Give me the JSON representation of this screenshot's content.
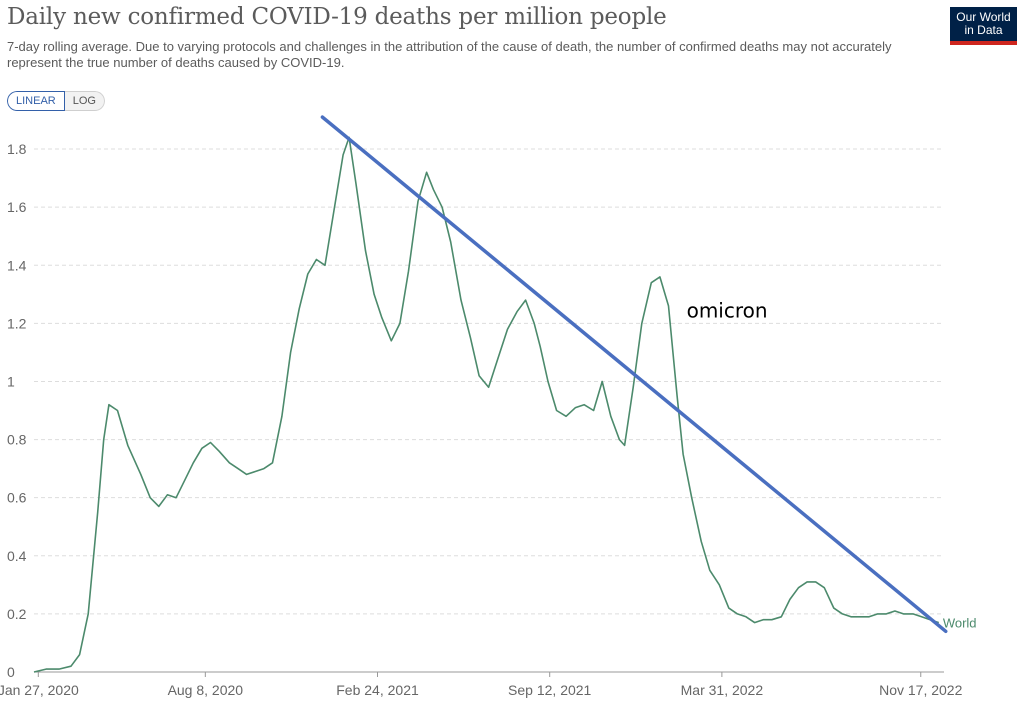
{
  "header": {
    "title": "Daily new confirmed COVID-19 deaths per million people",
    "subtitle": "7-day rolling average. Due to varying protocols and challenges in the attribution of the cause of death, the number of confirmed deaths may not accurately represent the true number of deaths caused by COVID-19.",
    "logo_line1": "Our World",
    "logo_line2": "in Data"
  },
  "scale_toggle": {
    "linear_label": "LINEAR",
    "log_label": "LOG",
    "selected": "LINEAR"
  },
  "colors": {
    "series": "#4c8a6c",
    "trendline": "#4a6fc0",
    "grid": "#dddddd",
    "logo_bg": "#002147",
    "logo_accent": "#ce261e",
    "toggle_accent": "#3360a9"
  },
  "chart_data": {
    "type": "line",
    "title": "Daily new confirmed COVID-19 deaths per million people",
    "xlabel": "",
    "ylabel": "",
    "ylim": [
      0,
      1.9
    ],
    "yticks": [
      0,
      0.2,
      0.4,
      0.6,
      0.8,
      1,
      1.2,
      1.4,
      1.6,
      1.8
    ],
    "ytick_labels": [
      "0",
      "0.2",
      "0.4",
      "0.6",
      "0.8",
      "1",
      "1.2",
      "1.4",
      "1.6",
      "1.8"
    ],
    "xticks": [
      "Jan 27, 2020",
      "Aug 8, 2020",
      "Feb 24, 2021",
      "Sep 12, 2021",
      "Mar 31, 2022",
      "Nov 17, 2022"
    ],
    "xlim": [
      "2020-01-22",
      "2022-12-14"
    ],
    "grid": "horizontal dashed",
    "series": [
      {
        "name": "World",
        "x": [
          "2020-01-22",
          "2020-02-05",
          "2020-02-20",
          "2020-03-05",
          "2020-03-15",
          "2020-03-25",
          "2020-04-05",
          "2020-04-12",
          "2020-04-18",
          "2020-04-28",
          "2020-05-10",
          "2020-05-25",
          "2020-06-05",
          "2020-06-15",
          "2020-06-25",
          "2020-07-05",
          "2020-07-15",
          "2020-07-25",
          "2020-08-04",
          "2020-08-14",
          "2020-08-24",
          "2020-09-05",
          "2020-09-15",
          "2020-09-25",
          "2020-10-05",
          "2020-10-15",
          "2020-10-25",
          "2020-11-05",
          "2020-11-15",
          "2020-11-25",
          "2020-12-05",
          "2020-12-15",
          "2020-12-25",
          "2021-01-05",
          "2021-01-15",
          "2021-01-22",
          "2021-01-30",
          "2021-02-10",
          "2021-02-20",
          "2021-03-01",
          "2021-03-12",
          "2021-03-22",
          "2021-04-01",
          "2021-04-12",
          "2021-04-22",
          "2021-04-30",
          "2021-05-10",
          "2021-05-20",
          "2021-06-01",
          "2021-06-12",
          "2021-06-22",
          "2021-07-03",
          "2021-07-14",
          "2021-07-25",
          "2021-08-05",
          "2021-08-15",
          "2021-08-25",
          "2021-09-01",
          "2021-09-10",
          "2021-09-20",
          "2021-10-01",
          "2021-10-12",
          "2021-10-22",
          "2021-11-02",
          "2021-11-12",
          "2021-11-22",
          "2021-12-02",
          "2021-12-08",
          "2021-12-18",
          "2021-12-28",
          "2022-01-08",
          "2022-01-18",
          "2022-01-28",
          "2022-02-07",
          "2022-02-14",
          "2022-02-24",
          "2022-03-07",
          "2022-03-17",
          "2022-03-28",
          "2022-04-08",
          "2022-04-18",
          "2022-04-28",
          "2022-05-08",
          "2022-05-18",
          "2022-05-28",
          "2022-06-08",
          "2022-06-18",
          "2022-06-28",
          "2022-07-08",
          "2022-07-18",
          "2022-07-28",
          "2022-08-08",
          "2022-08-18",
          "2022-08-28",
          "2022-09-08",
          "2022-09-18",
          "2022-09-28",
          "2022-10-08",
          "2022-10-18",
          "2022-10-28",
          "2022-11-08",
          "2022-11-18",
          "2022-11-28",
          "2022-12-08"
        ],
        "values": [
          0,
          0.01,
          0.01,
          0.02,
          0.06,
          0.2,
          0.55,
          0.8,
          0.92,
          0.9,
          0.78,
          0.68,
          0.6,
          0.57,
          0.61,
          0.6,
          0.66,
          0.72,
          0.77,
          0.79,
          0.76,
          0.72,
          0.7,
          0.68,
          0.69,
          0.7,
          0.72,
          0.88,
          1.1,
          1.25,
          1.37,
          1.42,
          1.4,
          1.6,
          1.78,
          1.84,
          1.68,
          1.45,
          1.3,
          1.22,
          1.14,
          1.2,
          1.38,
          1.62,
          1.72,
          1.66,
          1.6,
          1.48,
          1.28,
          1.15,
          1.02,
          0.98,
          1.08,
          1.18,
          1.24,
          1.28,
          1.2,
          1.12,
          1.0,
          0.9,
          0.88,
          0.91,
          0.92,
          0.9,
          1.0,
          0.88,
          0.8,
          0.78,
          0.98,
          1.2,
          1.34,
          1.36,
          1.26,
          0.95,
          0.75,
          0.6,
          0.45,
          0.35,
          0.3,
          0.22,
          0.2,
          0.19,
          0.17,
          0.18,
          0.18,
          0.19,
          0.25,
          0.29,
          0.31,
          0.31,
          0.29,
          0.22,
          0.2,
          0.19,
          0.19,
          0.19,
          0.2,
          0.2,
          0.21,
          0.2,
          0.2,
          0.19,
          0.18,
          0.17
        ],
        "end_label": "World"
      }
    ],
    "annotations": [
      {
        "type": "trendline",
        "from": [
          "2020-12-22",
          1.91
        ],
        "to": [
          "2022-12-16",
          0.14
        ]
      },
      {
        "type": "text",
        "text": "omicron",
        "at": [
          "2022-02-18",
          1.22
        ]
      }
    ]
  }
}
